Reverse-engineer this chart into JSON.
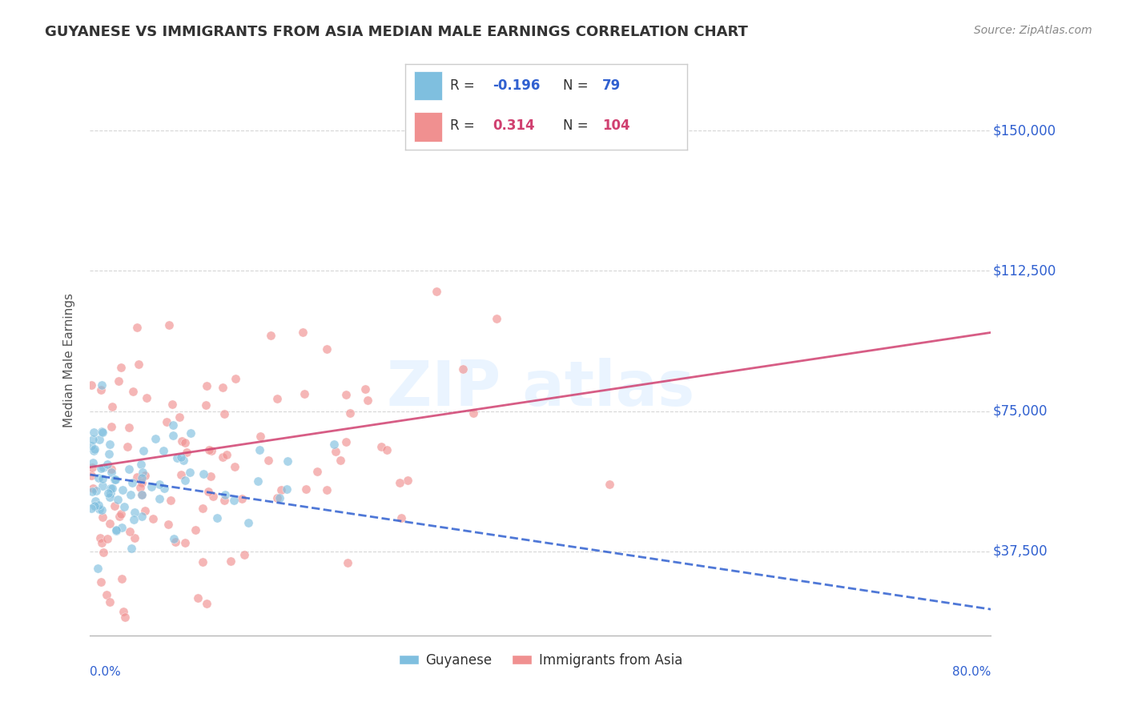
{
  "title": "GUYANESE VS IMMIGRANTS FROM ASIA MEDIAN MALE EARNINGS CORRELATION CHART",
  "source": "Source: ZipAtlas.com",
  "ylabel": "Median Male Earnings",
  "xmin": 0.0,
  "xmax": 80.0,
  "ymin": 15000,
  "ymax": 162000,
  "legend_r1_val": "-0.196",
  "legend_n1_val": "79",
  "legend_r2_val": "0.314",
  "legend_n2_val": "104",
  "color_blue": "#7fbfdf",
  "color_pink": "#f09090",
  "color_text_blue": "#3060d0",
  "color_text_pink": "#d04070",
  "trend_blue_color": "#3060d0",
  "trend_pink_color": "#d04070",
  "background_color": "#ffffff",
  "grid_color": "#cccccc",
  "series1_name": "Guyanese",
  "series2_name": "Immigrants from Asia",
  "ytick_vals": [
    37500,
    75000,
    112500,
    150000
  ],
  "ytick_labels": [
    "$37,500",
    "$75,000",
    "$112,500",
    "$150,000"
  ]
}
